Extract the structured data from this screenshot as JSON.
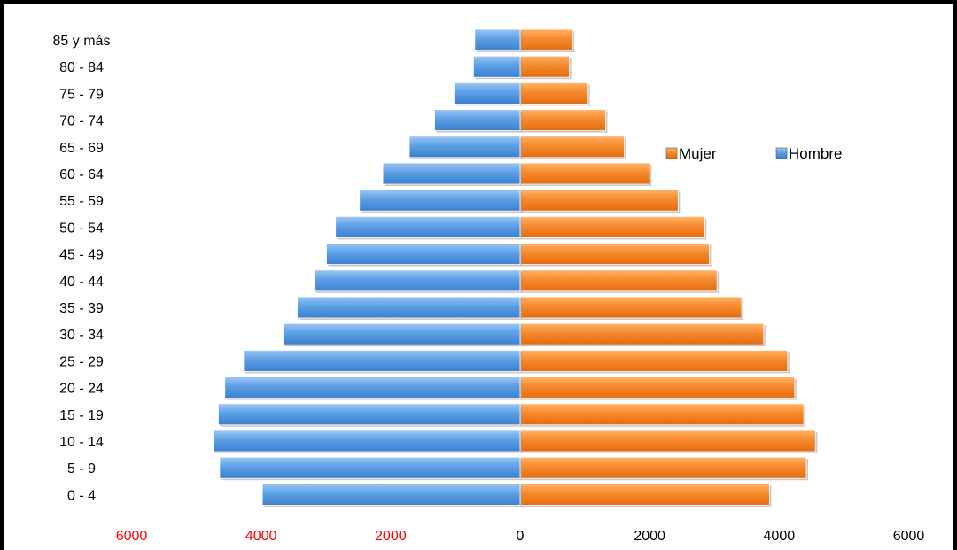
{
  "chart_data": {
    "type": "bar",
    "orientation": "horizontal",
    "layout": "population-pyramid",
    "categories": [
      "0 - 4",
      "5 - 9",
      "10 - 14",
      "15 - 19",
      "20 - 24",
      "25 - 29",
      "30 - 34",
      "35 - 39",
      "40 - 44",
      "45 - 49",
      "50 - 54",
      "55 - 59",
      "60 - 64",
      "65 - 69",
      "70 - 74",
      "75 - 79",
      "80 - 84",
      "85 y más"
    ],
    "series": [
      {
        "name": "Mujer",
        "color": "#f58220",
        "side": "right",
        "values": [
          3850,
          4420,
          4560,
          4380,
          4240,
          4130,
          3760,
          3420,
          3040,
          2920,
          2850,
          2440,
          2000,
          1610,
          1320,
          1050,
          760,
          810
        ]
      },
      {
        "name": "Hombre",
        "color": "#4a90d9",
        "side": "left",
        "values": [
          3980,
          4640,
          4740,
          4660,
          4560,
          4270,
          3660,
          3440,
          3180,
          2990,
          2850,
          2480,
          2120,
          1710,
          1320,
          1020,
          720,
          700
        ]
      }
    ],
    "xlim": [
      -6000,
      6000
    ],
    "x_ticks": [
      {
        "label": "6000",
        "value": -6000,
        "color": "#ff0000"
      },
      {
        "label": "4000",
        "value": -4000,
        "color": "#ff0000"
      },
      {
        "label": "2000",
        "value": -2000,
        "color": "#ff0000"
      },
      {
        "label": "0",
        "value": 0,
        "color": "#000000"
      },
      {
        "label": "2000",
        "value": 2000,
        "color": "#000000"
      },
      {
        "label": "4000",
        "value": 4000,
        "color": "#000000"
      },
      {
        "label": "6000",
        "value": 6000,
        "color": "#000000"
      }
    ],
    "legend": {
      "placement": "right",
      "entries": [
        "Mujer",
        "Hombre"
      ]
    },
    "grid": false
  }
}
